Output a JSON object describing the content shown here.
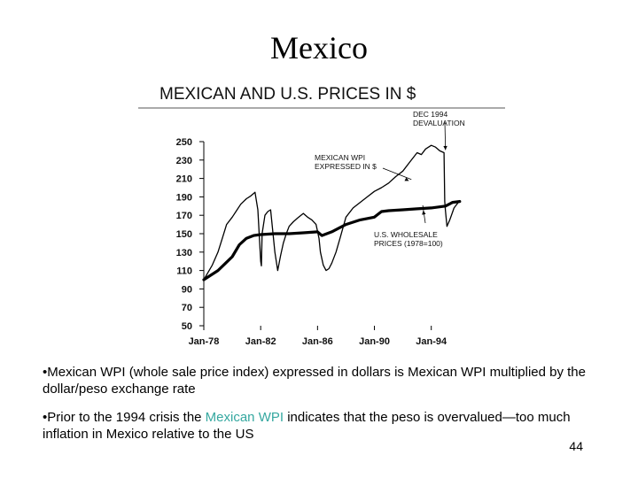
{
  "slide": {
    "title": "Mexico",
    "bullets": [
      {
        "prefix": "•Mexican WPI (whole sale price index) expressed in dollars is Mexican WPI multiplied by the dollar/peso exchange rate"
      },
      {
        "prefix": "•Prior to the 1994 crisis the ",
        "highlight": "Mexican WPI",
        "suffix": " indicates that the peso is overvalued—too much inflation in Mexico relative to the US"
      }
    ],
    "page_number": "44",
    "highlight_color": "#35a8a0"
  },
  "chart_data": {
    "type": "line",
    "title": "MEXICAN AND U.S. PRICES IN $",
    "ylim": [
      50,
      250
    ],
    "yticks": [
      50,
      70,
      90,
      110,
      130,
      150,
      170,
      190,
      210,
      230,
      250
    ],
    "xlim": [
      1978,
      1996.2
    ],
    "xticks": [
      {
        "value": 1978,
        "label": "Jan-78"
      },
      {
        "value": 1982,
        "label": "Jan-82"
      },
      {
        "value": 1986,
        "label": "Jan-86"
      },
      {
        "value": 1990,
        "label": "Jan-90"
      },
      {
        "value": 1994,
        "label": "Jan-94"
      }
    ],
    "series": [
      {
        "name": "MEXICAN WPI EXPRESSED IN $",
        "style": "thin",
        "x": [
          1978.0,
          1978.3,
          1978.6,
          1979.0,
          1979.3,
          1979.6,
          1980.0,
          1980.3,
          1980.6,
          1981.0,
          1981.3,
          1981.6,
          1981.8,
          1982.0,
          1982.05,
          1982.1,
          1982.3,
          1982.5,
          1982.7,
          1983.0,
          1983.2,
          1983.4,
          1983.6,
          1983.8,
          1984.0,
          1984.3,
          1984.6,
          1985.0,
          1985.3,
          1985.6,
          1985.9,
          1986.1,
          1986.2,
          1986.4,
          1986.6,
          1986.8,
          1987.0,
          1987.3,
          1987.6,
          1988.0,
          1988.5,
          1989.0,
          1989.5,
          1990.0,
          1990.5,
          1991.0,
          1991.5,
          1992.0,
          1992.5,
          1993.0,
          1993.3,
          1993.6,
          1994.0,
          1994.3,
          1994.6,
          1994.9,
          1994.95,
          1995.0,
          1995.1,
          1995.3,
          1995.6,
          1996.0
        ],
        "values": [
          100,
          108,
          116,
          130,
          145,
          160,
          168,
          175,
          182,
          188,
          191,
          195,
          176,
          120,
          115,
          150,
          170,
          174,
          176,
          130,
          110,
          126,
          140,
          150,
          158,
          163,
          167,
          172,
          168,
          165,
          160,
          145,
          130,
          116,
          110,
          112,
          118,
          130,
          146,
          168,
          178,
          184,
          190,
          196,
          200,
          205,
          212,
          218,
          228,
          238,
          236,
          242,
          246,
          244,
          240,
          238,
          185,
          175,
          158,
          165,
          178,
          186
        ]
      },
      {
        "name": "U.S. WHOLESALE PRICES (1978=100)",
        "style": "thick",
        "x": [
          1978.0,
          1979.0,
          1980.0,
          1980.5,
          1981.0,
          1981.5,
          1982.0,
          1983.0,
          1984.0,
          1985.0,
          1986.0,
          1986.3,
          1987.0,
          1988.0,
          1989.0,
          1990.0,
          1990.5,
          1991.0,
          1992.0,
          1993.0,
          1994.0,
          1995.0,
          1995.5,
          1996.0
        ],
        "values": [
          100,
          110,
          125,
          138,
          145,
          148,
          149,
          150,
          150,
          151,
          152,
          148,
          152,
          160,
          165,
          168,
          174,
          175,
          176,
          177,
          178,
          180,
          184,
          185
        ]
      }
    ],
    "annotations": [
      {
        "id": "dec1994",
        "lines": [
          "DEC 1994",
          "DEVALUATION"
        ],
        "points_to": {
          "x": 1995.0,
          "y": 238
        }
      },
      {
        "id": "mexican_wpi",
        "lines": [
          "MEXICAN WPI",
          "EXPRESSED IN $"
        ],
        "points_to": {
          "x": 1992.6,
          "y": 206
        }
      },
      {
        "id": "us_wholesale",
        "lines": [
          "U.S. WHOLESALE",
          "PRICES (1978=100)"
        ],
        "points_to": {
          "x": 1993.4,
          "y": 178
        }
      }
    ]
  }
}
